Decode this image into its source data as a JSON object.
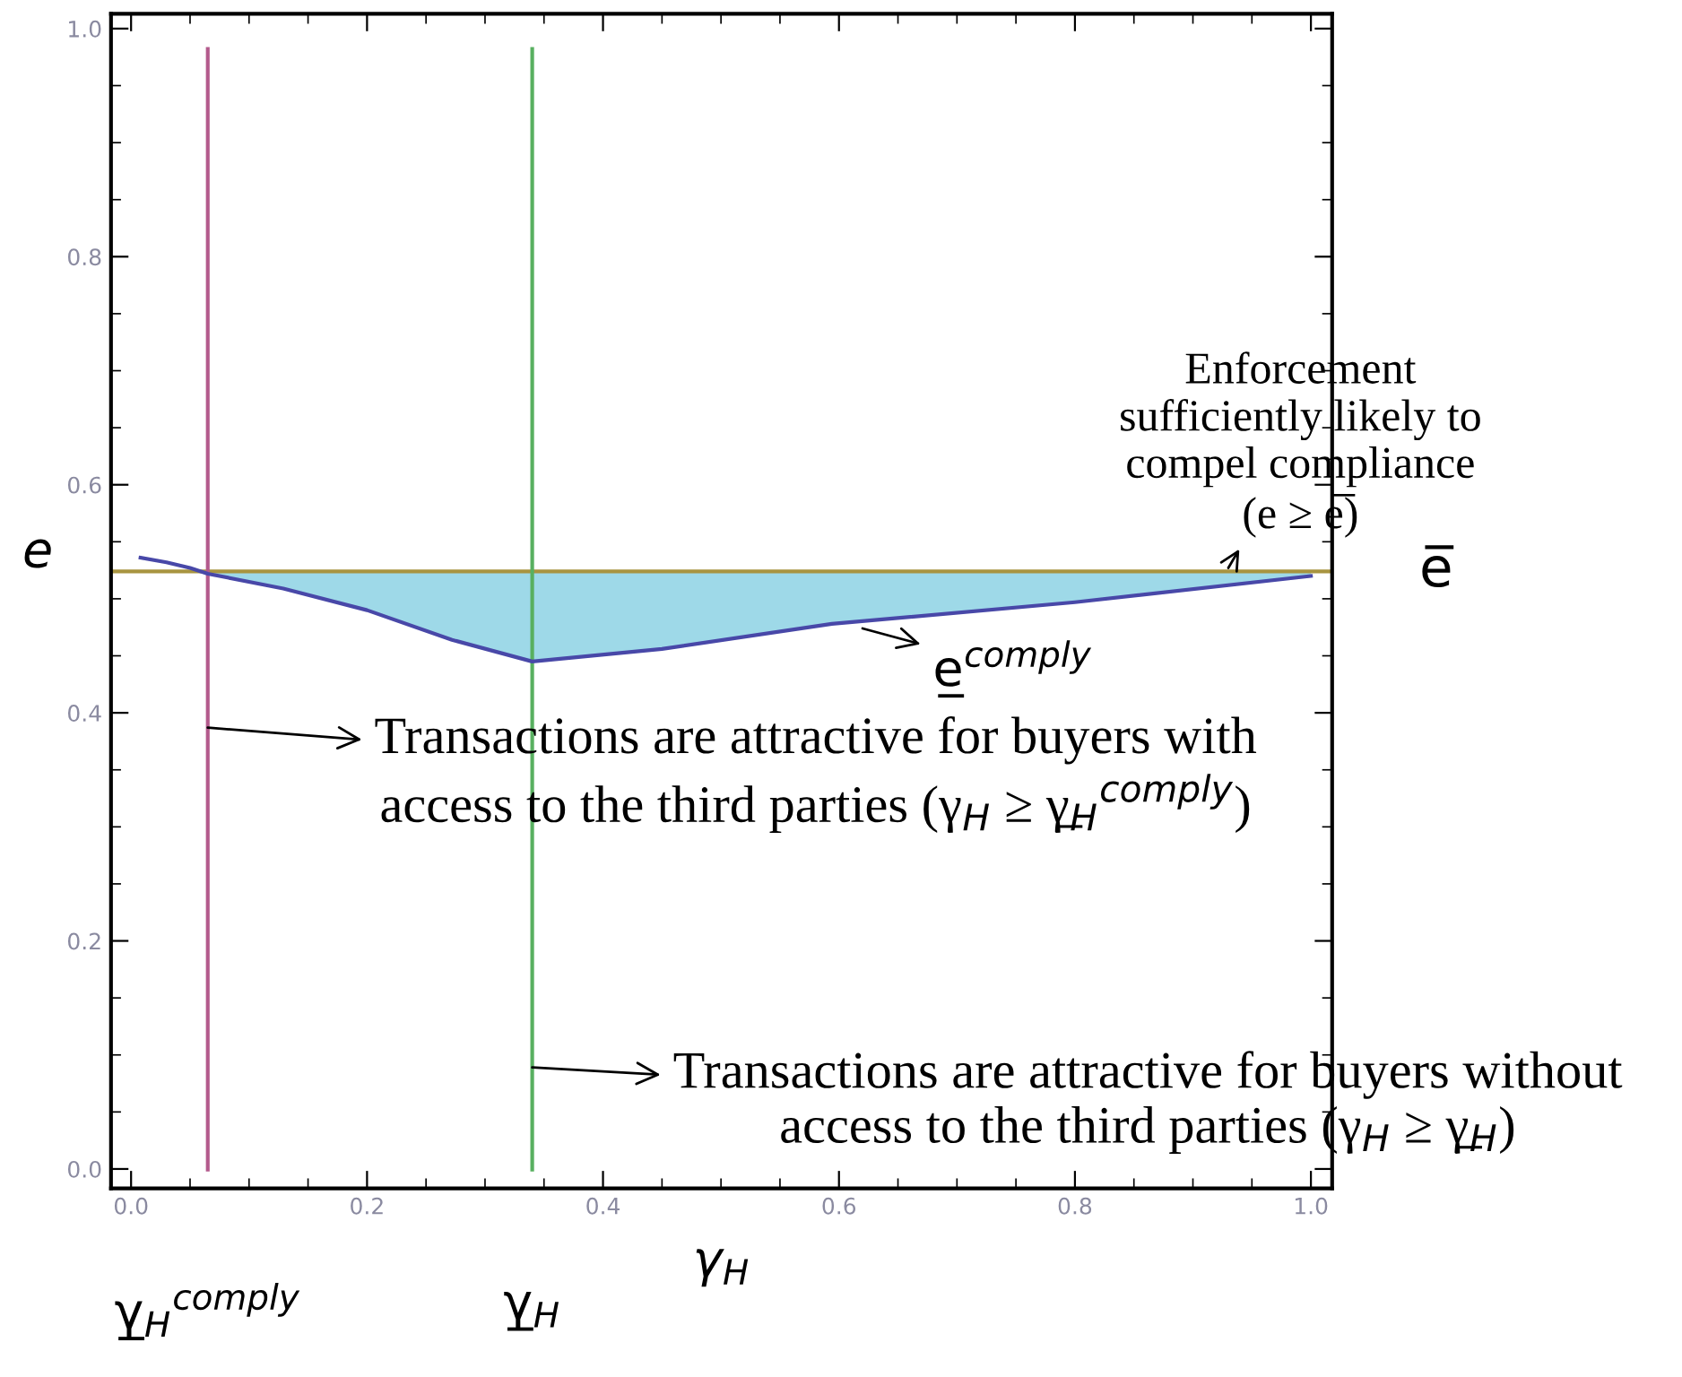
{
  "chart_data": {
    "type": "line",
    "xlabel": "γ$_{H}$",
    "ylabel": "e",
    "xlim": [
      -0.017,
      1.018
    ],
    "ylim": [
      -0.017,
      1.013
    ],
    "xticks": [
      {
        "value": 0,
        "label": "0.0"
      },
      {
        "value": 0.05,
        "label": null
      },
      {
        "value": 0.1,
        "label": null
      },
      {
        "value": 0.15,
        "label": null
      },
      {
        "value": 0.2,
        "label": "0.2"
      },
      {
        "value": 0.25,
        "label": null
      },
      {
        "value": 0.3,
        "label": null
      },
      {
        "value": 0.35,
        "label": null
      },
      {
        "value": 0.4,
        "label": "0.4"
      },
      {
        "value": 0.45,
        "label": null
      },
      {
        "value": 0.5,
        "label": null
      },
      {
        "value": 0.55,
        "label": null
      },
      {
        "value": 0.6,
        "label": "0.6"
      },
      {
        "value": 0.65,
        "label": null
      },
      {
        "value": 0.7,
        "label": null
      },
      {
        "value": 0.75,
        "label": null
      },
      {
        "value": 0.8,
        "label": "0.8"
      },
      {
        "value": 0.85,
        "label": null
      },
      {
        "value": 0.9,
        "label": null
      },
      {
        "value": 0.95,
        "label": null
      },
      {
        "value": 1.0,
        "label": "1.0"
      }
    ],
    "yticks": [
      {
        "value": 0,
        "label": "0.0"
      },
      {
        "value": 0.05,
        "label": null
      },
      {
        "value": 0.1,
        "label": null
      },
      {
        "value": 0.15,
        "label": null
      },
      {
        "value": 0.2,
        "label": "0.2"
      },
      {
        "value": 0.25,
        "label": null
      },
      {
        "value": 0.3,
        "label": null
      },
      {
        "value": 0.35,
        "label": null
      },
      {
        "value": 0.4,
        "label": "0.4"
      },
      {
        "value": 0.45,
        "label": null
      },
      {
        "value": 0.5,
        "label": null
      },
      {
        "value": 0.55,
        "label": null
      },
      {
        "value": 0.6,
        "label": "0.6"
      },
      {
        "value": 0.65,
        "label": null
      },
      {
        "value": 0.7,
        "label": null
      },
      {
        "value": 0.75,
        "label": null
      },
      {
        "value": 0.8,
        "label": "0.8"
      },
      {
        "value": 0.85,
        "label": null
      },
      {
        "value": 0.9,
        "label": null
      },
      {
        "value": 0.95,
        "label": null
      },
      {
        "value": 1.0,
        "label": "1.0"
      }
    ],
    "grid": false,
    "series": [
      {
        "type": "area",
        "color": "#9ed9e8",
        "x": [
          0.065,
          0.129,
          0.2,
          0.272,
          0.34,
          0.45,
          0.594,
          0.8,
          1.0
        ],
        "values": [
          0.522,
          0.509,
          0.49,
          0.464,
          0.445,
          0.456,
          0.478,
          0.497,
          0.52
        ]
      },
      {
        "color": "#4848a8",
        "x": [
          0.008,
          0.03,
          0.05,
          0.065,
          0.129,
          0.2,
          0.272,
          0.34,
          0.45,
          0.594,
          0.8,
          1.0
        ],
        "values": [
          0.536,
          0.532,
          0.527,
          0.522,
          0.509,
          0.49,
          0.464,
          0.445,
          0.456,
          0.478,
          0.497,
          0.52
        ]
      }
    ],
    "ref_lines": [
      {
        "axis": "y",
        "value": 0.524,
        "label": "e̅",
        "color": "#a89440"
      },
      {
        "axis": "x",
        "value": 0.065,
        "label": "γ̲$_{H}$$^{comply}$",
        "color": "#b35a8c"
      },
      {
        "axis": "x",
        "value": 0.34,
        "label": "γ̲$_{H}$",
        "color": "#58b060"
      }
    ],
    "annotations": [
      {
        "text": "Enforcement\nsufficiently likely to\ncompel compliance\n(e ≥ e̅)",
        "x": 0.93,
        "y": 0.527
      },
      {
        "text": "e̲$^{comply}$",
        "x": 0.62,
        "y": 0.474
      },
      {
        "text": "Transactions are attractive for buyers with\naccess to the third parties (γ$_{H}$ ≥ γ̲$_{H}$$^{comply}$)",
        "x": 0.065,
        "y": 0.387
      },
      {
        "text": "Transactions are attractive for buyers without\naccess to the third parties (γ$_{H}$ ≥ γ̲$_{H}$)",
        "x": 0.34,
        "y": 0.089
      }
    ]
  }
}
